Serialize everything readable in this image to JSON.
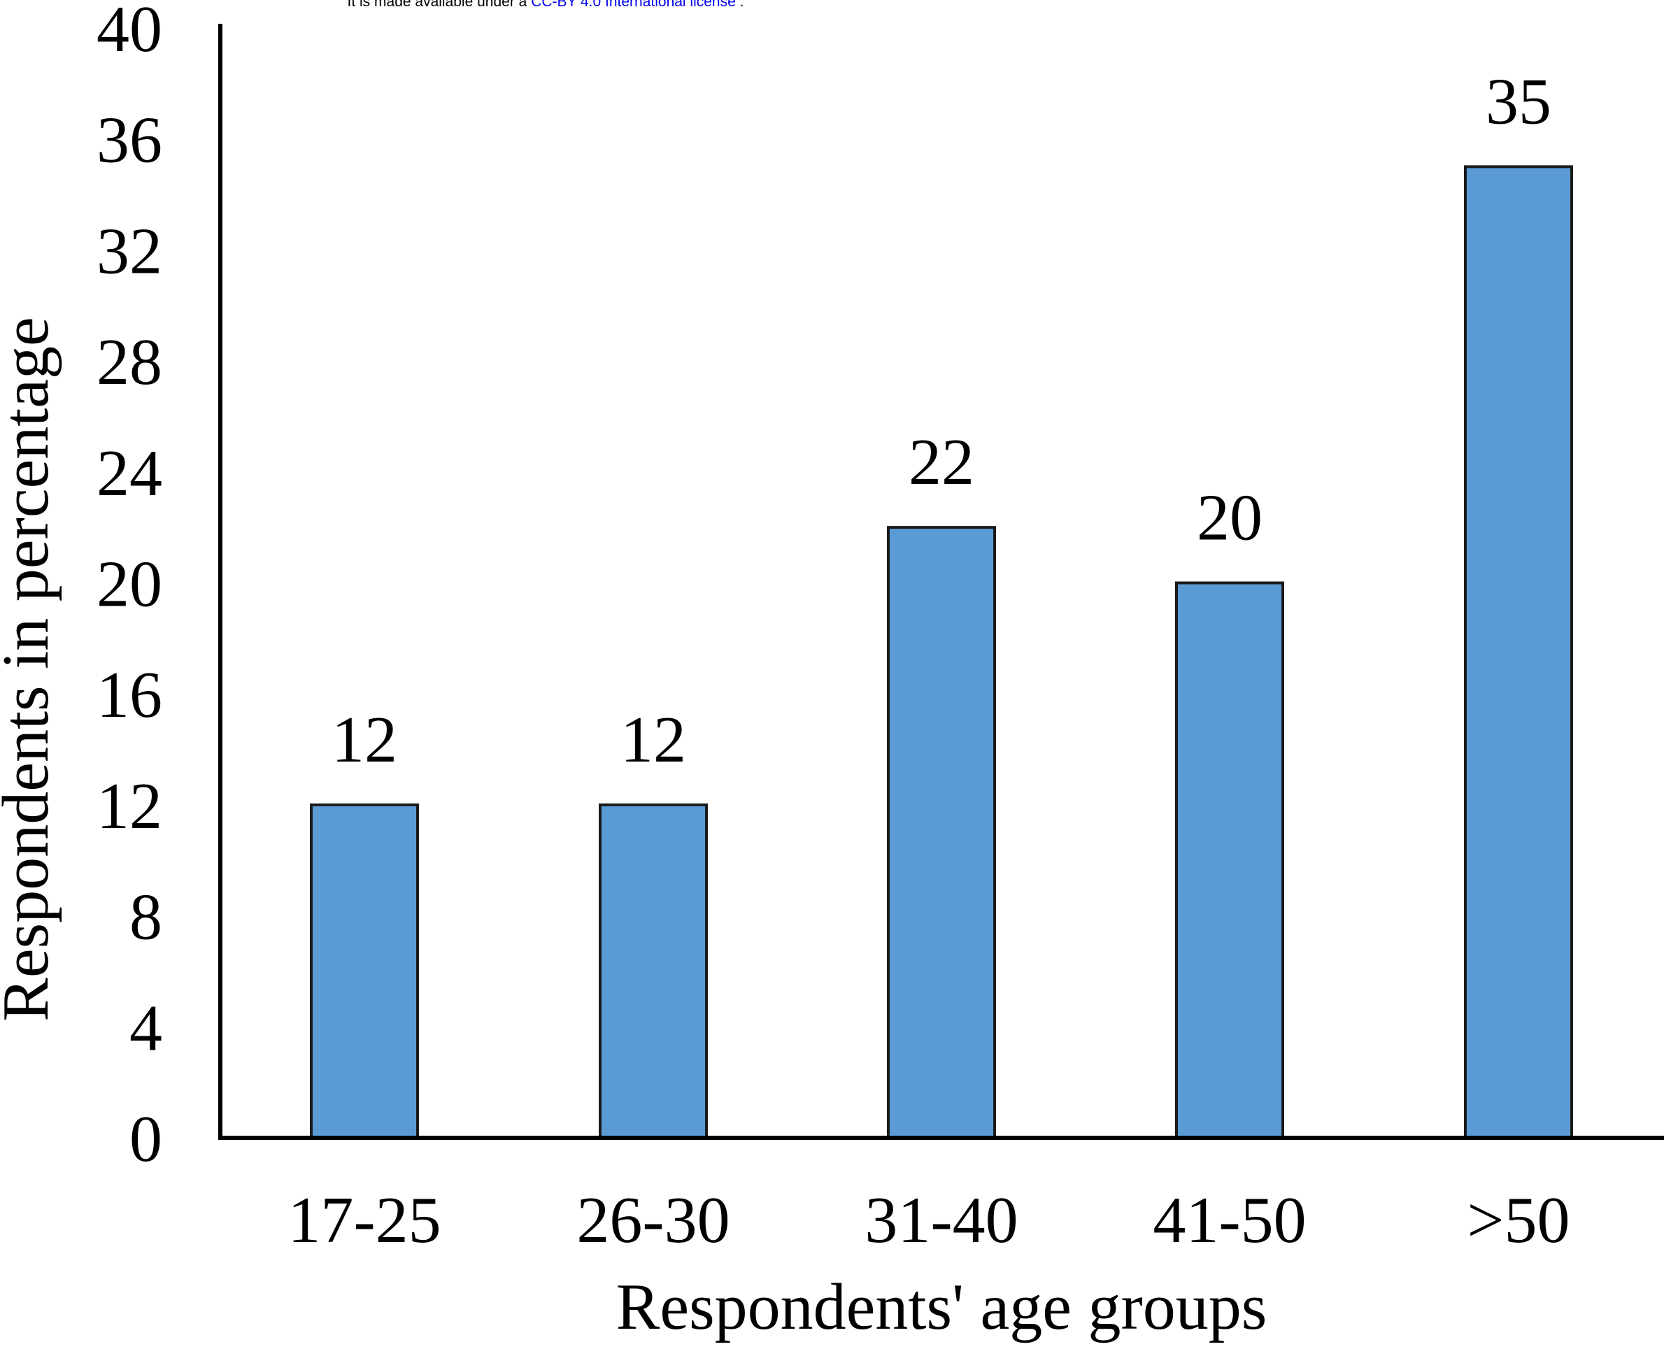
{
  "header": {
    "license_prefix": "It is made available under a",
    "license_link": "CC-BY 4.0 International license",
    "license_suffix": "."
  },
  "colors": {
    "bar_fill": "#5b9bd5",
    "bar_stroke": "#1a1a1a",
    "axis": "#000000",
    "text": "#000000",
    "link": "#0000ee"
  },
  "chart_data": {
    "type": "bar",
    "categories": [
      "17-25",
      "26-30",
      "31-40",
      "41-50",
      ">50"
    ],
    "values": [
      12,
      12,
      22,
      20,
      35
    ],
    "data_labels": [
      "12",
      "12",
      "22",
      "20",
      "35"
    ],
    "xlabel": "Respondents' age groups",
    "ylabel": "Respondents in percentage",
    "ylim": [
      0,
      40
    ],
    "yticks": [
      0,
      4,
      8,
      12,
      16,
      20,
      24,
      28,
      32,
      36,
      40
    ],
    "grid": false,
    "legend": "none"
  }
}
